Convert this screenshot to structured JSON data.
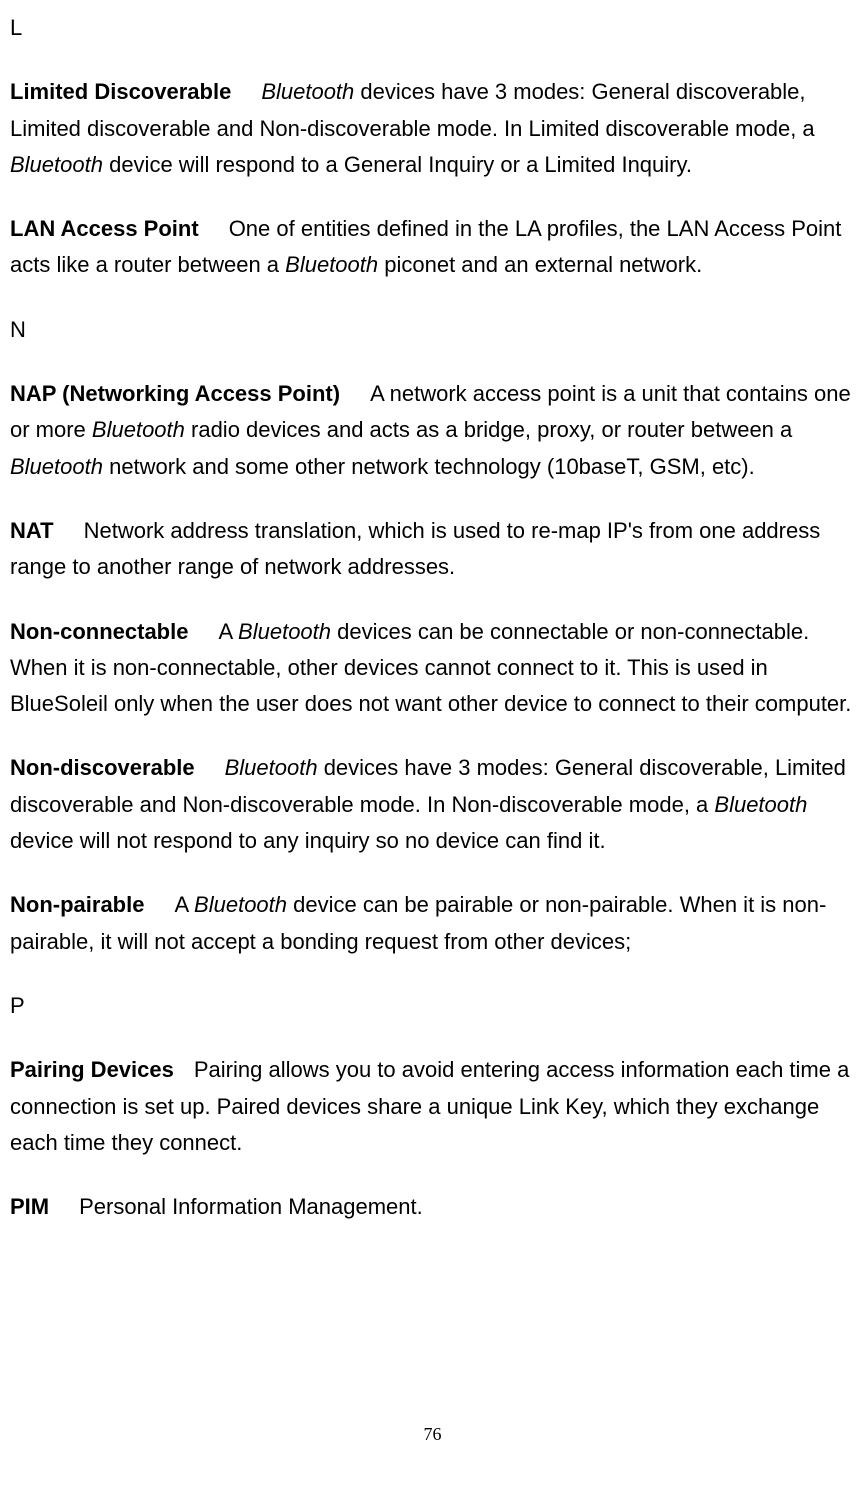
{
  "sectionL": {
    "letter": "L",
    "entries": [
      {
        "term": "Limited Discoverable",
        "def_pre_italic": "",
        "italic1": "Bluetooth",
        "mid1": " devices have 3 modes: General discoverable, Limited discoverable and Non-discoverable mode. In Limited discoverable mode, a ",
        "italic2": "Bluetooth",
        "mid2": " device will respond to a General Inquiry or a Limited Inquiry."
      },
      {
        "term": "LAN Access Point",
        "def_pre_italic": "One of entities defined in the LA profiles, the LAN Access Point acts like a router between a ",
        "italic1": "Bluetooth",
        "mid1": " piconet and an external network.",
        "italic2": "",
        "mid2": ""
      }
    ]
  },
  "sectionN": {
    "letter": "N",
    "entries": [
      {
        "term": "NAP (Networking Access Point)",
        "def_pre_italic": "A network access point is a unit that contains one or more ",
        "italic1": "Bluetooth",
        "mid1": " radio devices and acts as a bridge, proxy, or router between a ",
        "italic2": "Bluetooth",
        "mid2": " network and some other network technology (10baseT, GSM, etc)."
      },
      {
        "term": "NAT",
        "def_pre_italic": "Network address translation, which is used to re-map IP's from one address range to another range of network addresses.",
        "italic1": "",
        "mid1": "",
        "italic2": "",
        "mid2": ""
      },
      {
        "term": "Non-connectable",
        "def_pre_italic": "A ",
        "italic1": "Bluetooth",
        "mid1": " devices can be connectable or non-connectable. When it is non-connectable, other devices cannot connect to it. This is used in BlueSoleil only when the user does not want other device to connect to their computer.",
        "italic2": "",
        "mid2": ""
      },
      {
        "term": "Non-discoverable",
        "def_pre_italic": "",
        "italic1": "Bluetooth",
        "mid1": " devices have 3 modes: General discoverable, Limited discoverable and Non-discoverable mode. In Non-discoverable mode, a ",
        "italic2": "Bluetooth",
        "mid2": " device will not respond to any inquiry so no   device can find it."
      },
      {
        "term": "Non-pairable",
        "def_pre_italic": "A ",
        "italic1": "Bluetooth",
        "mid1": " device can be pairable or non-pairable. When it is non-pairable, it will not accept a bonding request from other devices;",
        "italic2": "",
        "mid2": ""
      }
    ]
  },
  "sectionP": {
    "letter": "P",
    "entries": [
      {
        "term": "Pairing Devices",
        "def_pre_italic": "Pairing allows you to avoid entering access information each time a connection is set up. Paired devices share a unique Link Key, which they exchange each time they connect.",
        "italic1": "",
        "mid1": "",
        "italic2": "",
        "mid2": ""
      },
      {
        "term": "PIM",
        "def_pre_italic": "Personal Information Management.",
        "italic1": "",
        "mid1": "",
        "italic2": "",
        "mid2": ""
      }
    ]
  },
  "pageNumber": "76"
}
